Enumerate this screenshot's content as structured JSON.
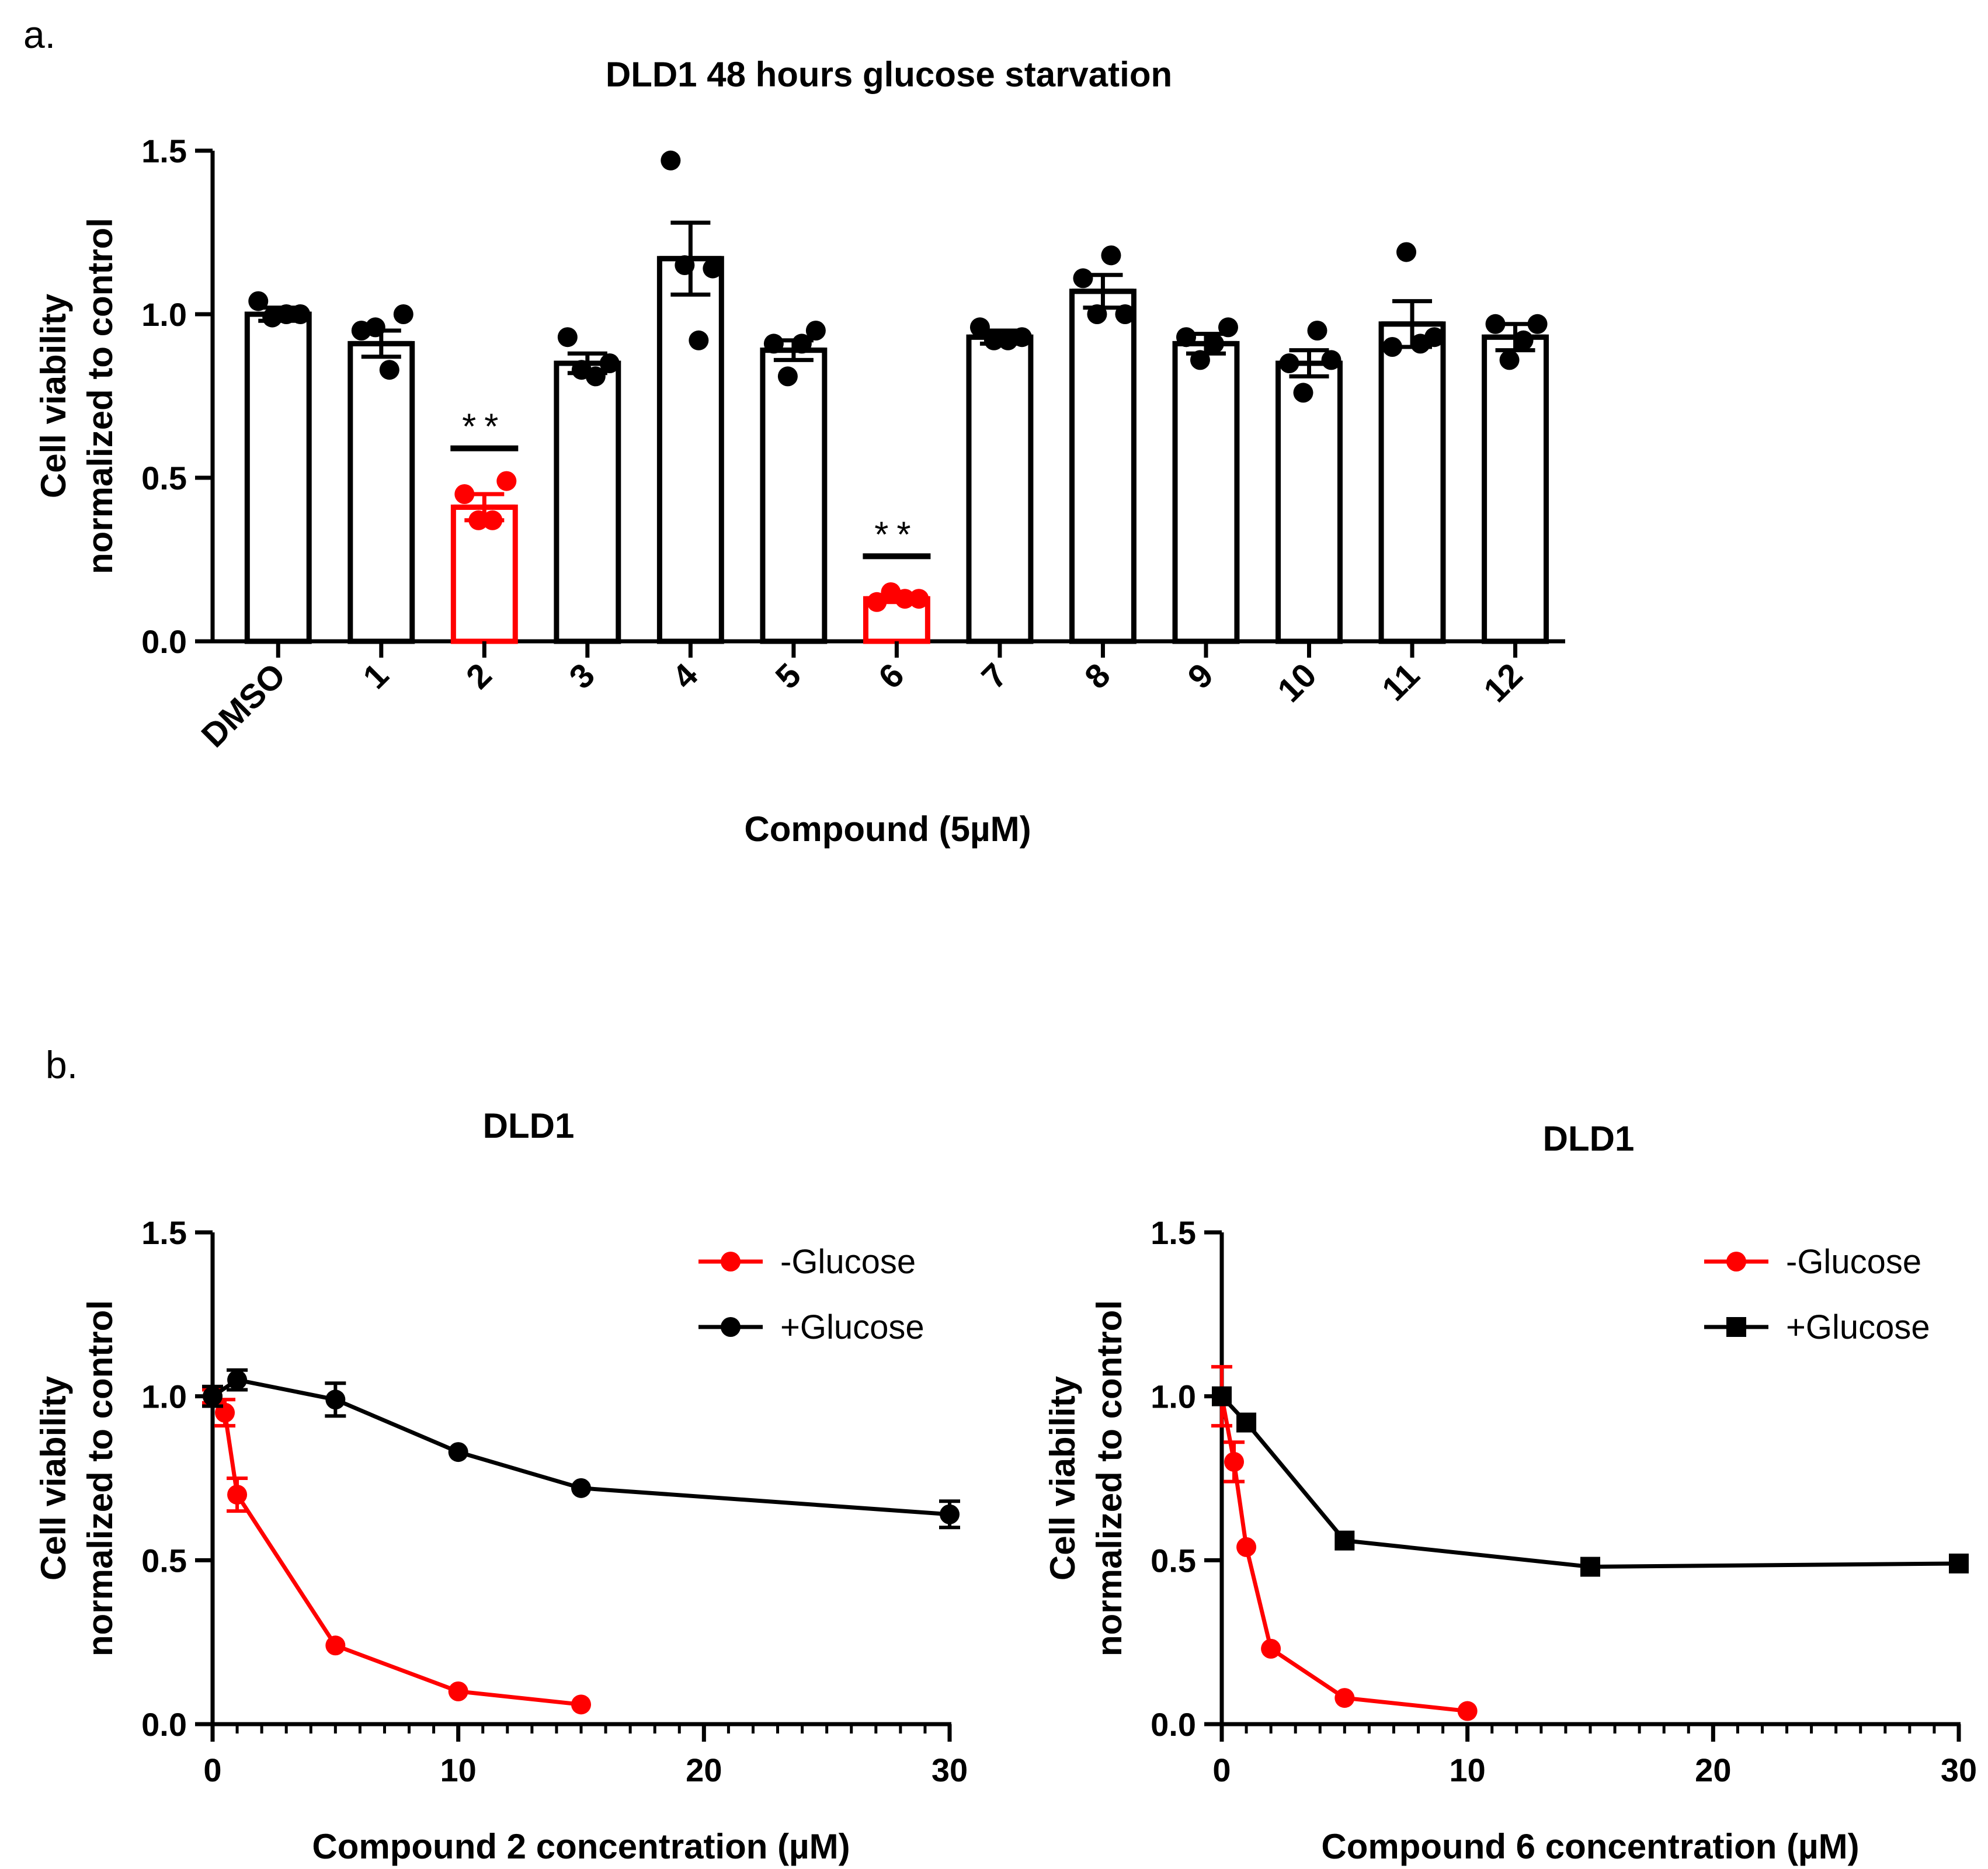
{
  "figure": {
    "panel_a_label": "a.",
    "panel_b_label": "b.",
    "colors": {
      "highlight": "#ff0000",
      "default": "#000000",
      "bar_fill": "#ffffff"
    }
  },
  "chart_data": [
    {
      "id": "panel-a",
      "type": "bar",
      "title": "DLD1  48 hours glucose starvation",
      "xlabel": "Compound (5µM)",
      "ylabel": [
        "Cell viability",
        "normalized to control"
      ],
      "ylim": [
        0,
        1.5
      ],
      "yticks": [
        0.0,
        0.5,
        1.0,
        1.5
      ],
      "ytick_labels": [
        "0.0",
        "0.5",
        "1.0",
        "1.5"
      ],
      "categories": [
        "DMSO",
        "1",
        "2",
        "3",
        "4",
        "5",
        "6",
        "7",
        "8",
        "9",
        "10",
        "11",
        "12"
      ],
      "values": [
        1.0,
        0.91,
        0.41,
        0.85,
        1.17,
        0.89,
        0.13,
        0.93,
        1.07,
        0.91,
        0.85,
        0.97,
        0.93
      ],
      "sem": [
        0.02,
        0.04,
        0.04,
        0.03,
        0.11,
        0.03,
        0.01,
        0.02,
        0.05,
        0.03,
        0.04,
        0.07,
        0.04
      ],
      "points": [
        [
          1.04,
          0.99,
          1.0,
          1.0
        ],
        [
          0.95,
          0.96,
          0.83,
          1.0
        ],
        [
          0.45,
          0.37,
          0.37,
          0.49
        ],
        [
          0.93,
          0.83,
          0.81,
          0.85
        ],
        [
          1.47,
          1.15,
          0.92,
          1.14
        ],
        [
          0.91,
          0.81,
          0.91,
          0.95
        ],
        [
          0.12,
          0.15,
          0.13,
          0.13
        ],
        [
          0.96,
          0.92,
          0.92,
          0.93
        ],
        [
          1.11,
          1.0,
          1.18,
          1.0
        ],
        [
          0.93,
          0.86,
          0.91,
          0.96
        ],
        [
          0.85,
          0.76,
          0.95,
          0.86
        ],
        [
          0.9,
          1.19,
          0.91,
          0.93
        ],
        [
          0.97,
          0.86,
          0.92,
          0.97
        ]
      ],
      "highlighted": [
        false,
        false,
        true,
        false,
        false,
        false,
        true,
        false,
        false,
        false,
        false,
        false,
        false
      ],
      "annotations": [
        {
          "category": "2",
          "text": "**",
          "y": 0.59
        },
        {
          "category": "6",
          "text": "**",
          "y": 0.26
        }
      ]
    },
    {
      "id": "panel-b-left",
      "type": "line",
      "title": "DLD1",
      "xlabel": "Compound 2 concentration (µM)",
      "ylabel": [
        "Cell viability",
        "normalized to control"
      ],
      "xlim": [
        0,
        30
      ],
      "ylim": [
        0,
        1.5
      ],
      "xticks": [
        0,
        10,
        20,
        30
      ],
      "xtick_labels": [
        "0",
        "10",
        "20",
        "30"
      ],
      "yticks": [
        0.0,
        0.5,
        1.0,
        1.5
      ],
      "ytick_labels": [
        "0.0",
        "0.5",
        "1.0",
        "1.5"
      ],
      "legend_position": "top-right",
      "series": [
        {
          "name": "-Glucose",
          "color": "#ff0000",
          "marker": "circle",
          "x": [
            0,
            0.5,
            1,
            5,
            10,
            15
          ],
          "y": [
            1.0,
            0.95,
            0.7,
            0.24,
            0.1,
            0.06
          ],
          "err": [
            0.02,
            0.04,
            0.05,
            0.0,
            0.0,
            0.0
          ]
        },
        {
          "name": "+Glucose",
          "color": "#000000",
          "marker": "circle",
          "x": [
            0,
            1,
            5,
            10,
            15,
            30
          ],
          "y": [
            1.0,
            1.05,
            0.99,
            0.83,
            0.72,
            0.64
          ],
          "err": [
            0.03,
            0.03,
            0.05,
            0.0,
            0.0,
            0.04
          ]
        }
      ]
    },
    {
      "id": "panel-b-right",
      "type": "line",
      "title": "DLD1",
      "xlabel": "Compound 6 concentration (µM)",
      "ylabel": [
        "Cell viability",
        "normalized to control"
      ],
      "xlim": [
        0,
        30
      ],
      "ylim": [
        0,
        1.5
      ],
      "xticks": [
        0,
        10,
        20,
        30
      ],
      "xtick_labels": [
        "0",
        "10",
        "20",
        "30"
      ],
      "yticks": [
        0.0,
        0.5,
        1.0,
        1.5
      ],
      "ytick_labels": [
        "0.0",
        "0.5",
        "1.0",
        "1.5"
      ],
      "legend_position": "top-right",
      "series": [
        {
          "name": "-Glucose",
          "color": "#ff0000",
          "marker": "circle",
          "x": [
            0,
            0.5,
            1,
            2,
            5,
            10
          ],
          "y": [
            1.0,
            0.8,
            0.54,
            0.23,
            0.08,
            0.04
          ],
          "err": [
            0.09,
            0.06,
            0.0,
            0.0,
            0.0,
            0.0
          ]
        },
        {
          "name": "+Glucose",
          "color": "#000000",
          "marker": "square",
          "x": [
            0,
            1,
            5,
            15,
            30
          ],
          "y": [
            1.0,
            0.92,
            0.56,
            0.48,
            0.49
          ],
          "err": [
            0.0,
            0.0,
            0.0,
            0.0,
            0.0
          ]
        }
      ]
    }
  ]
}
